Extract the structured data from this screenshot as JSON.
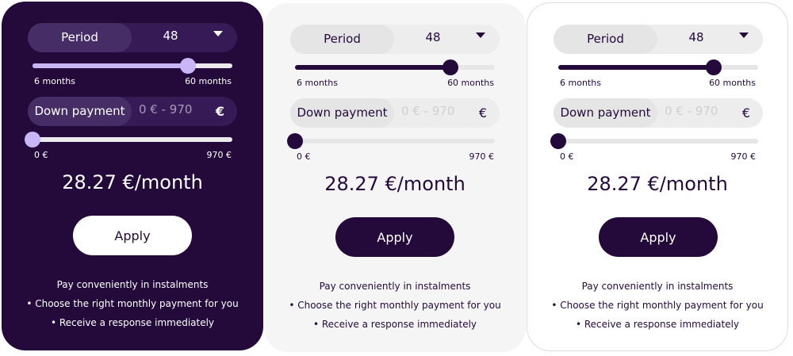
{
  "colors": {
    "brand_dark": "#230a3a",
    "accent_light": "#c8b6f7",
    "grey_bg": "#f5f5f5"
  },
  "cards": [
    {
      "theme": "dark",
      "period": {
        "label": "Period",
        "value": "48",
        "min_label": "6 months",
        "max_label": "60 months",
        "min": 6,
        "max": 60,
        "current": 48,
        "icon": "chevron-down-icon"
      },
      "down_payment": {
        "label": "Down payment",
        "placeholder": "0 € - 970 €",
        "currency": "€",
        "min_label": "0 €",
        "max_label": "970 €",
        "min": 0,
        "max": 970,
        "current": 0
      },
      "price": "28.27 €/month",
      "apply_label": "Apply",
      "info": [
        "Pay conveniently in instalments",
        "• Choose the right monthly payment for you",
        "• Receive a response immediately"
      ]
    },
    {
      "theme": "grey",
      "period": {
        "label": "Period",
        "value": "48",
        "min_label": "6 months",
        "max_label": "60 months",
        "min": 6,
        "max": 60,
        "current": 48,
        "icon": "chevron-down-icon"
      },
      "down_payment": {
        "label": "Down payment",
        "placeholder": "0 € - 970 €",
        "currency": "€",
        "min_label": "0 €",
        "max_label": "970 €",
        "min": 0,
        "max": 970,
        "current": 0
      },
      "price": "28.27 €/month",
      "apply_label": "Apply",
      "info": [
        "Pay conveniently in instalments",
        "• Choose the right monthly payment for you",
        "• Receive a response immediately"
      ]
    },
    {
      "theme": "white",
      "period": {
        "label": "Period",
        "value": "48",
        "min_label": "6 months",
        "max_label": "60 months",
        "min": 6,
        "max": 60,
        "current": 48,
        "icon": "chevron-down-icon"
      },
      "down_payment": {
        "label": "Down payment",
        "placeholder": "0 € - 970 €",
        "currency": "€",
        "min_label": "0 €",
        "max_label": "970 €",
        "min": 0,
        "max": 970,
        "current": 0
      },
      "price": "28.27 €/month",
      "apply_label": "Apply",
      "info": [
        "Pay conveniently in instalments",
        "• Choose the right monthly payment for you",
        "• Receive a response immediately"
      ]
    }
  ]
}
